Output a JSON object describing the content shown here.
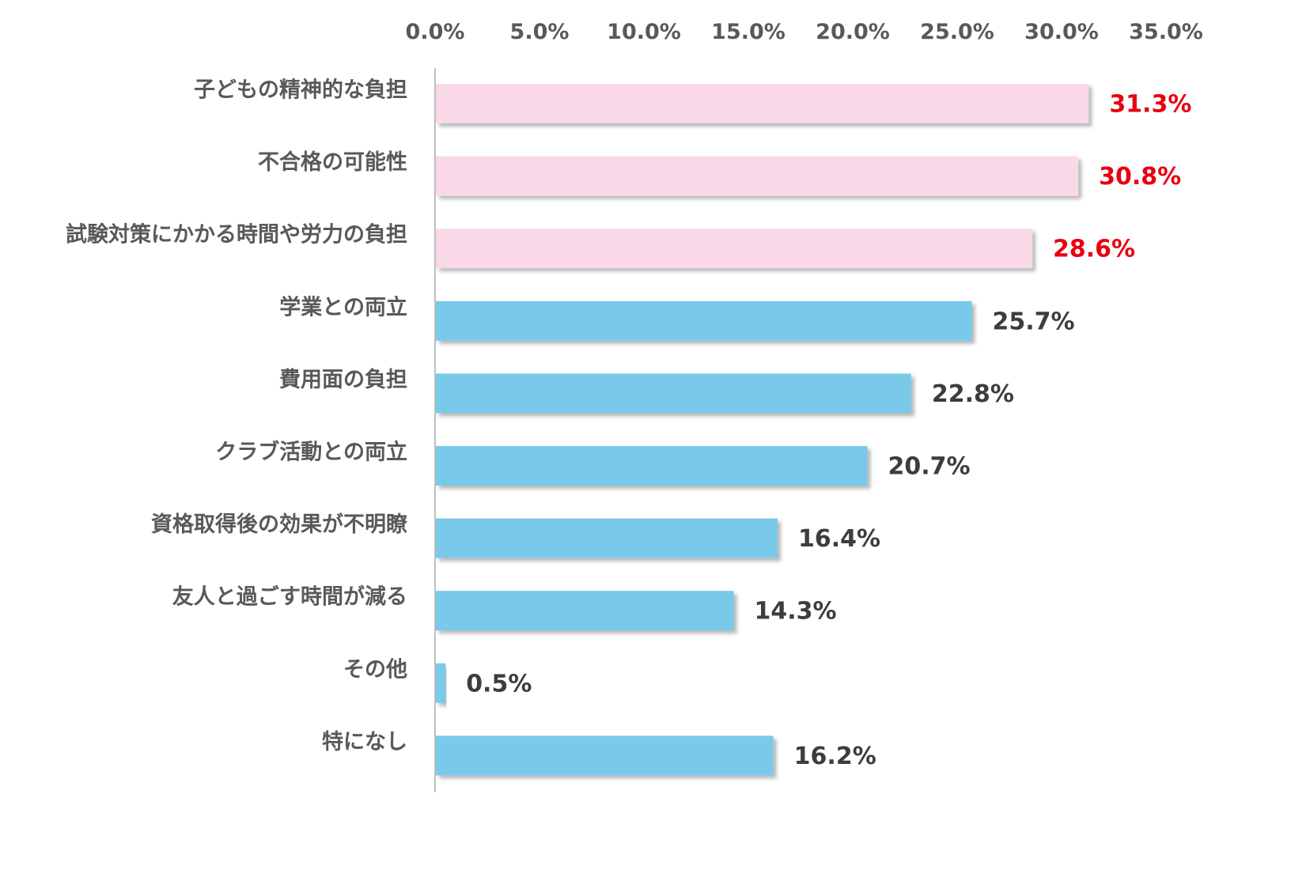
{
  "chart_data": {
    "type": "bar",
    "orientation": "horizontal",
    "title": "",
    "xlabel": "",
    "ylabel": "",
    "xlim": [
      0,
      35
    ],
    "ticks": [
      "0.0%",
      "5.0%",
      "10.0%",
      "15.0%",
      "20.0%",
      "25.0%",
      "30.0%",
      "35.0%"
    ],
    "tick_values": [
      0,
      5,
      10,
      15,
      20,
      25,
      30,
      35
    ],
    "axis_position": "top",
    "grid": false,
    "legend": "none",
    "categories": [
      "子どもの精神的な負担",
      "不合格の可能性",
      "試験対策にかかる時間や労力の負担",
      "学業との両立",
      "費用面の負担",
      "クラブ活動との両立",
      "資格取得後の効果が不明瞭",
      "友人と過ごす時間が減る",
      "その他",
      "特になし"
    ],
    "values": [
      31.3,
      30.8,
      28.6,
      25.7,
      22.8,
      20.7,
      16.4,
      14.3,
      0.5,
      16.2
    ],
    "value_labels": [
      "31.3%",
      "30.8%",
      "28.6%",
      "25.7%",
      "22.8%",
      "20.7%",
      "16.4%",
      "14.3%",
      "0.5%",
      "16.2%"
    ],
    "highlight_top_n": 3,
    "colors": {
      "highlight_bar": "#f9d9e7",
      "normal_bar": "#79c9ea",
      "highlight_label": "#e8000f",
      "normal_label": "#3d3d3d",
      "category_label": "#595959",
      "tick_label": "#595959",
      "axis_line": "#bfbfbf"
    }
  }
}
